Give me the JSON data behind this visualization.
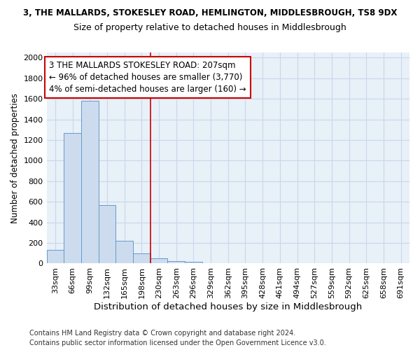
{
  "title": "3, THE MALLARDS, STOKESLEY ROAD, HEMLINGTON, MIDDLESBROUGH, TS8 9DX",
  "subtitle": "Size of property relative to detached houses in Middlesbrough",
  "xlabel": "Distribution of detached houses by size in Middlesbrough",
  "ylabel": "Number of detached properties",
  "footnote1": "Contains HM Land Registry data © Crown copyright and database right 2024.",
  "footnote2": "Contains public sector information licensed under the Open Government Licence v3.0.",
  "bar_color": "#ccdcee",
  "bar_edge_color": "#6699cc",
  "annotation_box_color": "#cc0000",
  "vline_color": "#cc0000",
  "grid_color": "#c8d8ea",
  "bg_color": "#e8f0f8",
  "categories": [
    "33sqm",
    "66sqm",
    "99sqm",
    "132sqm",
    "165sqm",
    "198sqm",
    "230sqm",
    "263sqm",
    "296sqm",
    "329sqm",
    "362sqm",
    "395sqm",
    "428sqm",
    "461sqm",
    "494sqm",
    "527sqm",
    "559sqm",
    "592sqm",
    "625sqm",
    "658sqm",
    "691sqm"
  ],
  "values": [
    130,
    1270,
    1580,
    570,
    220,
    95,
    50,
    25,
    15,
    5,
    5,
    0,
    0,
    0,
    0,
    0,
    0,
    0,
    0,
    0,
    0
  ],
  "ylim": [
    0,
    2050
  ],
  "yticks": [
    0,
    200,
    400,
    600,
    800,
    1000,
    1200,
    1400,
    1600,
    1800,
    2000
  ],
  "vline_x_index": 5.5,
  "annotation_line1": "3 THE MALLARDS STOKESLEY ROAD: 207sqm",
  "annotation_line2": "← 96% of detached houses are smaller (3,770)",
  "annotation_line3": "4% of semi-detached houses are larger (160) →",
  "figsize": [
    6.0,
    5.0
  ],
  "dpi": 100,
  "title_fontsize": 8.5,
  "subtitle_fontsize": 9.0,
  "xlabel_fontsize": 9.5,
  "ylabel_fontsize": 8.5,
  "tick_fontsize": 8.0,
  "annotation_fontsize": 8.5,
  "footnote_fontsize": 7.0
}
